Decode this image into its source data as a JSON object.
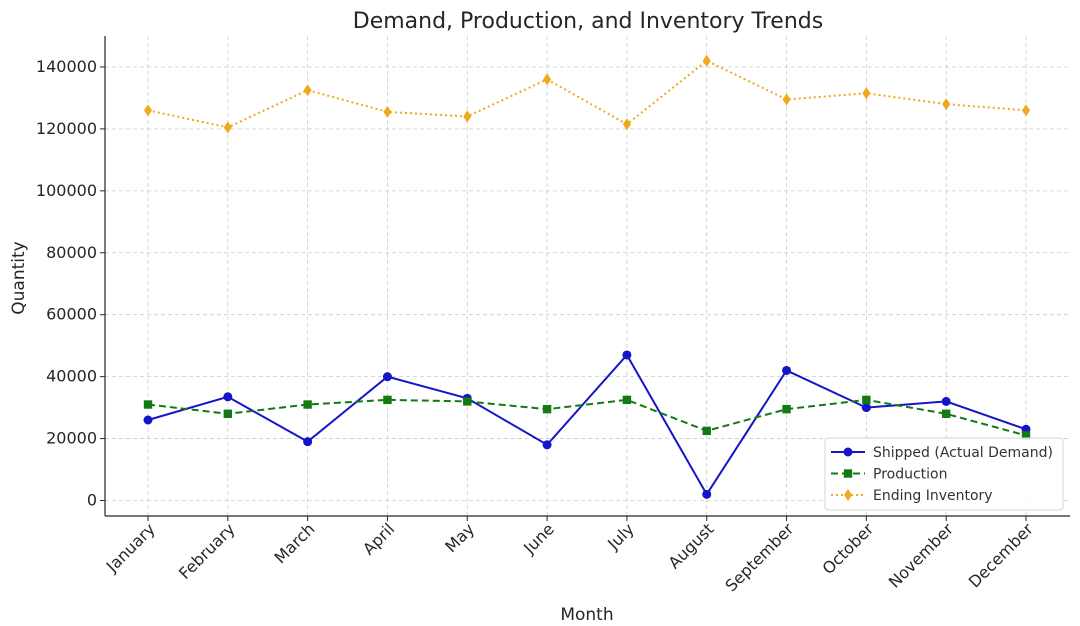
{
  "chart_data": {
    "type": "line",
    "title": "Demand, Production, and Inventory Trends",
    "xlabel": "Month",
    "ylabel": "Quantity",
    "categories": [
      "January",
      "February",
      "March",
      "April",
      "May",
      "June",
      "July",
      "August",
      "September",
      "October",
      "November",
      "December"
    ],
    "ylim": [
      -5000,
      150000
    ],
    "yticks": [
      0,
      20000,
      40000,
      60000,
      80000,
      100000,
      120000,
      140000
    ],
    "grid": true,
    "legend_position": "bottom-right",
    "series": [
      {
        "name": "Shipped (Actual Demand)",
        "color": "#1515c8",
        "linestyle": "solid",
        "marker": "circle",
        "values": [
          26000,
          33500,
          19000,
          40000,
          33000,
          18000,
          47000,
          2000,
          42000,
          30000,
          32000,
          23000
        ]
      },
      {
        "name": "Production",
        "color": "#137a13",
        "linestyle": "dashed",
        "marker": "square",
        "values": [
          31000,
          28000,
          31000,
          32500,
          32000,
          29500,
          32500,
          22500,
          29500,
          32500,
          28000,
          21000
        ]
      },
      {
        "name": "Ending Inventory",
        "color": "#f0a81c",
        "linestyle": "dotted",
        "marker": "diamond",
        "values": [
          126000,
          120500,
          132500,
          125500,
          124000,
          136000,
          121500,
          142000,
          129500,
          131500,
          128000,
          126000
        ]
      }
    ]
  }
}
